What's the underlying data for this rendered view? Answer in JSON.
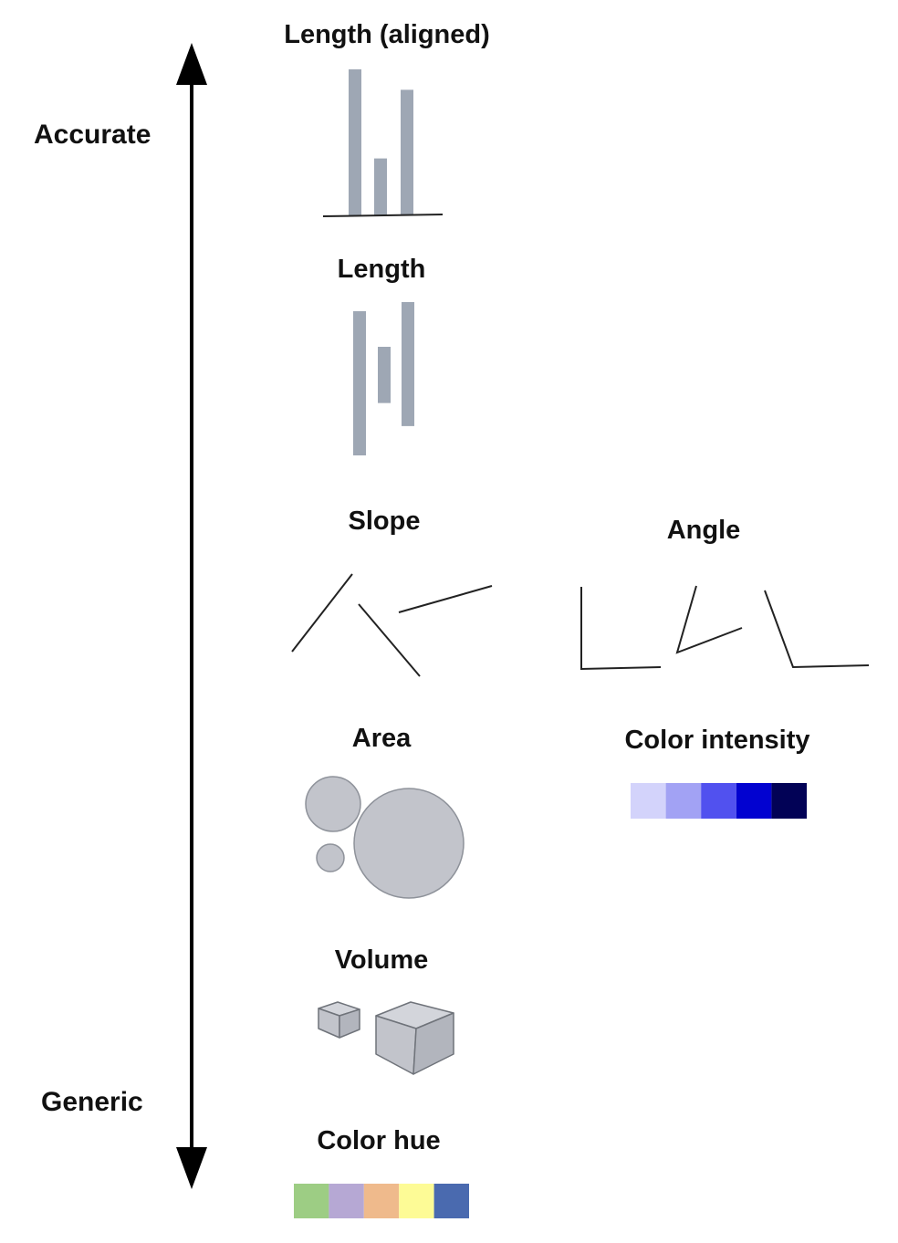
{
  "scale": {
    "top_label": "Accurate",
    "bottom_label": "Generic"
  },
  "channels": {
    "length_aligned": {
      "title": "Length (aligned)",
      "values": [
        100,
        39,
        86
      ]
    },
    "length": {
      "title": "Length",
      "values": [
        100,
        39,
        86
      ]
    },
    "slope": {
      "title": "Slope"
    },
    "angle": {
      "title": "Angle"
    },
    "area": {
      "title": "Area"
    },
    "color_intensity": {
      "title": "Color intensity",
      "swatches": [
        "#d3d3fb",
        "#a2a2f4",
        "#5151ef",
        "#0202d0",
        "#020256"
      ]
    },
    "volume": {
      "title": "Volume"
    },
    "color_hue": {
      "title": "Color hue",
      "swatches": [
        "#9dcd84",
        "#b6a8d4",
        "#efba8c",
        "#fdfb96",
        "#4a6aaf"
      ]
    }
  },
  "colors": {
    "mark_gray": "#9ea7b4",
    "shape_fill": "#c2c4cb",
    "shape_stroke": "#8e929a",
    "line": "#222222"
  }
}
